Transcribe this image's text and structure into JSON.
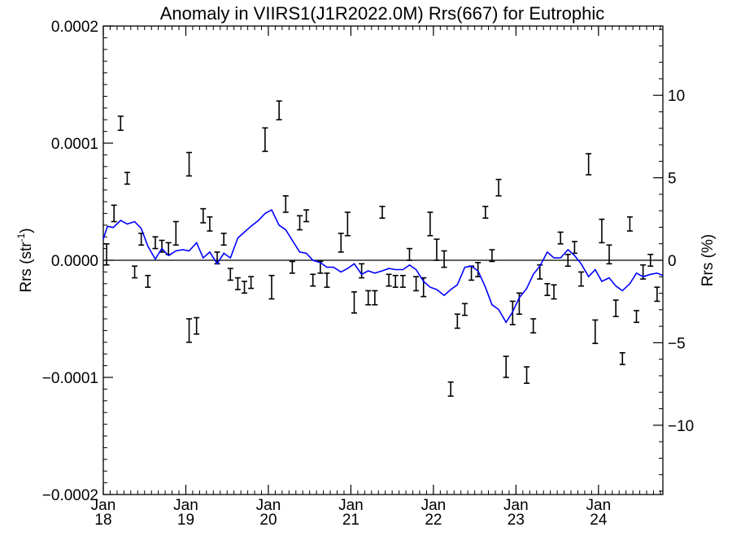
{
  "chart_data": {
    "type": "line",
    "title": "Anomaly in VIIRS1(J1R2022.0M) Rrs(667) for Eutrophic",
    "ylabel_left": "Rrs (str",
    "ylabel_left_sup": "-1",
    "ylabel_left_close": ")",
    "ylabel_right": "Rrs (%)",
    "ylim_left": [
      -0.0002,
      0.0002
    ],
    "ylim_right": [
      -14.2,
      14.2
    ],
    "xlim": [
      2018.0,
      2024.78
    ],
    "left_ticks": [
      {
        "value": 0.0002,
        "label": "0.0002"
      },
      {
        "value": 0.0001,
        "label": "0.0001"
      },
      {
        "value": 0.0,
        "label": "0.0000"
      },
      {
        "value": -0.0001,
        "label": "−0.0001"
      },
      {
        "value": -0.0002,
        "label": "−0.0002"
      }
    ],
    "right_ticks": [
      {
        "value": 10,
        "label": "10"
      },
      {
        "value": 5,
        "label": "5"
      },
      {
        "value": 0,
        "label": "0"
      },
      {
        "value": -5,
        "label": "−5"
      },
      {
        "value": -10,
        "label": "−10"
      }
    ],
    "x_ticks": [
      {
        "value": 2018,
        "month": "Jan",
        "year": "18"
      },
      {
        "value": 2019,
        "month": "Jan",
        "year": "19"
      },
      {
        "value": 2020,
        "month": "Jan",
        "year": "20"
      },
      {
        "value": 2021,
        "month": "Jan",
        "year": "21"
      },
      {
        "value": 2022,
        "month": "Jan",
        "year": "22"
      },
      {
        "value": 2023,
        "month": "Jan",
        "year": "23"
      },
      {
        "value": 2024,
        "month": "Jan",
        "year": "24"
      }
    ],
    "zero_line": true,
    "series": [
      {
        "kind": "error_bars",
        "color": "#000000",
        "points": [
          {
            "x": 2018.04,
            "y": 5e-06,
            "err": 9e-06
          },
          {
            "x": 2018.13,
            "y": 4e-05,
            "err": 7e-06
          },
          {
            "x": 2018.21,
            "y": 0.000117,
            "err": 6e-06
          },
          {
            "x": 2018.29,
            "y": 7e-05,
            "err": 5e-06
          },
          {
            "x": 2018.38,
            "y": -1e-05,
            "err": 5e-06
          },
          {
            "x": 2018.46,
            "y": 1.8e-05,
            "err": 5e-06
          },
          {
            "x": 2018.54,
            "y": -1.8e-05,
            "err": 5e-06
          },
          {
            "x": 2018.63,
            "y": 1.5e-05,
            "err": 5e-06
          },
          {
            "x": 2018.71,
            "y": 1.2e-05,
            "err": 5e-06
          },
          {
            "x": 2018.79,
            "y": 1e-05,
            "err": 5e-06
          },
          {
            "x": 2018.88,
            "y": 2.3e-05,
            "err": 1e-05
          },
          {
            "x": 2019.04,
            "y": -6e-05,
            "err": 1e-05
          },
          {
            "x": 2019.04,
            "y": 8.2e-05,
            "err": 1e-05
          },
          {
            "x": 2019.13,
            "y": -5.6e-05,
            "err": 7e-06
          },
          {
            "x": 2019.21,
            "y": 3.8e-05,
            "err": 6e-06
          },
          {
            "x": 2019.29,
            "y": 3.1e-05,
            "err": 6e-06
          },
          {
            "x": 2019.38,
            "y": 2e-06,
            "err": 5e-06
          },
          {
            "x": 2019.46,
            "y": 1.8e-05,
            "err": 5e-06
          },
          {
            "x": 2019.54,
            "y": -1.2e-05,
            "err": 5e-06
          },
          {
            "x": 2019.63,
            "y": -2e-05,
            "err": 5e-06
          },
          {
            "x": 2019.71,
            "y": -2.3e-05,
            "err": 5e-06
          },
          {
            "x": 2019.79,
            "y": -1.9e-05,
            "err": 5e-06
          },
          {
            "x": 2019.96,
            "y": 0.000103,
            "err": 1e-05
          },
          {
            "x": 2020.04,
            "y": -2.3e-05,
            "err": 1e-05
          },
          {
            "x": 2020.13,
            "y": 0.000128,
            "err": 8e-06
          },
          {
            "x": 2020.21,
            "y": 4.8e-05,
            "err": 7e-06
          },
          {
            "x": 2020.29,
            "y": -6e-06,
            "err": 5e-06
          },
          {
            "x": 2020.38,
            "y": 3.2e-05,
            "err": 6e-06
          },
          {
            "x": 2020.46,
            "y": 3.8e-05,
            "err": 5e-06
          },
          {
            "x": 2020.54,
            "y": -1.7e-05,
            "err": 5e-06
          },
          {
            "x": 2020.63,
            "y": -6e-06,
            "err": 5e-06
          },
          {
            "x": 2020.71,
            "y": -1.7e-05,
            "err": 6e-06
          },
          {
            "x": 2020.88,
            "y": 1.5e-05,
            "err": 8e-06
          },
          {
            "x": 2020.96,
            "y": 3.1e-05,
            "err": 1e-05
          },
          {
            "x": 2021.04,
            "y": -3.6e-05,
            "err": 9e-06
          },
          {
            "x": 2021.13,
            "y": -9e-06,
            "err": 6e-06
          },
          {
            "x": 2021.21,
            "y": -3.2e-05,
            "err": 6e-06
          },
          {
            "x": 2021.29,
            "y": -3.2e-05,
            "err": 6e-06
          },
          {
            "x": 2021.38,
            "y": 4.1e-05,
            "err": 5e-06
          },
          {
            "x": 2021.46,
            "y": -1.7e-05,
            "err": 5e-06
          },
          {
            "x": 2021.54,
            "y": -1.8e-05,
            "err": 5e-06
          },
          {
            "x": 2021.63,
            "y": -1.8e-05,
            "err": 5e-06
          },
          {
            "x": 2021.71,
            "y": 5e-06,
            "err": 5e-06
          },
          {
            "x": 2021.79,
            "y": -2e-05,
            "err": 6e-06
          },
          {
            "x": 2021.88,
            "y": -2.3e-05,
            "err": 8e-06
          },
          {
            "x": 2021.96,
            "y": 3.1e-05,
            "err": 1e-05
          },
          {
            "x": 2022.04,
            "y": 9e-06,
            "err": 9e-06
          },
          {
            "x": 2022.13,
            "y": 1e-06,
            "err": 7e-06
          },
          {
            "x": 2022.21,
            "y": -0.00011,
            "err": 6e-06
          },
          {
            "x": 2022.29,
            "y": -5.2e-05,
            "err": 6e-06
          },
          {
            "x": 2022.38,
            "y": -4.2e-05,
            "err": 5e-06
          },
          {
            "x": 2022.46,
            "y": -1.1e-05,
            "err": 6e-06
          },
          {
            "x": 2022.54,
            "y": -8e-06,
            "err": 6e-06
          },
          {
            "x": 2022.63,
            "y": 4.1e-05,
            "err": 5e-06
          },
          {
            "x": 2022.71,
            "y": 4e-06,
            "err": 5e-06
          },
          {
            "x": 2022.79,
            "y": 6.2e-05,
            "err": 7e-06
          },
          {
            "x": 2022.88,
            "y": -9.1e-05,
            "err": 9e-06
          },
          {
            "x": 2022.96,
            "y": -4.5e-05,
            "err": 1e-05
          },
          {
            "x": 2023.04,
            "y": -3.7e-05,
            "err": 9e-06
          },
          {
            "x": 2023.13,
            "y": -9.8e-05,
            "err": 7e-06
          },
          {
            "x": 2023.21,
            "y": -5.6e-05,
            "err": 6e-06
          },
          {
            "x": 2023.29,
            "y": -1e-05,
            "err": 6e-06
          },
          {
            "x": 2023.38,
            "y": -2.5e-05,
            "err": 5e-06
          },
          {
            "x": 2023.46,
            "y": -2.7e-05,
            "err": 6e-06
          },
          {
            "x": 2023.54,
            "y": 1.9e-05,
            "err": 5e-06
          },
          {
            "x": 2023.63,
            "y": 0.0,
            "err": 5e-06
          },
          {
            "x": 2023.71,
            "y": 1.1e-05,
            "err": 5e-06
          },
          {
            "x": 2023.79,
            "y": -1.6e-05,
            "err": 6e-06
          },
          {
            "x": 2023.88,
            "y": 8.2e-05,
            "err": 9e-06
          },
          {
            "x": 2023.96,
            "y": -6.1e-05,
            "err": 1e-05
          },
          {
            "x": 2024.04,
            "y": 2.5e-05,
            "err": 1e-05
          },
          {
            "x": 2024.13,
            "y": 5e-06,
            "err": 8e-06
          },
          {
            "x": 2024.21,
            "y": -4.1e-05,
            "err": 7e-06
          },
          {
            "x": 2024.29,
            "y": -8.4e-05,
            "err": 5e-06
          },
          {
            "x": 2024.38,
            "y": 3.1e-05,
            "err": 6e-06
          },
          {
            "x": 2024.46,
            "y": -4.8e-05,
            "err": 5e-06
          },
          {
            "x": 2024.54,
            "y": -1e-05,
            "err": 6e-06
          },
          {
            "x": 2024.63,
            "y": 0.0,
            "err": 5e-06
          },
          {
            "x": 2024.71,
            "y": -2.9e-05,
            "err": 6e-06
          }
        ]
      },
      {
        "kind": "line",
        "color": "#0000ff",
        "x": [
          2018.0,
          2018.05,
          2018.12,
          2018.21,
          2018.29,
          2018.38,
          2018.46,
          2018.54,
          2018.63,
          2018.71,
          2018.79,
          2018.88,
          2018.96,
          2019.04,
          2019.13,
          2019.21,
          2019.29,
          2019.38,
          2019.46,
          2019.54,
          2019.63,
          2019.71,
          2019.79,
          2019.88,
          2019.96,
          2020.04,
          2020.13,
          2020.21,
          2020.29,
          2020.38,
          2020.46,
          2020.54,
          2020.63,
          2020.71,
          2020.79,
          2020.88,
          2020.96,
          2021.04,
          2021.13,
          2021.21,
          2021.29,
          2021.38,
          2021.46,
          2021.54,
          2021.63,
          2021.71,
          2021.79,
          2021.88,
          2021.96,
          2022.04,
          2022.13,
          2022.21,
          2022.29,
          2022.38,
          2022.46,
          2022.54,
          2022.63,
          2022.71,
          2022.79,
          2022.88,
          2022.96,
          2023.04,
          2023.13,
          2023.21,
          2023.29,
          2023.38,
          2023.46,
          2023.54,
          2023.63,
          2023.71,
          2023.79,
          2023.88,
          2023.96,
          2024.04,
          2024.13,
          2024.21,
          2024.29,
          2024.38,
          2024.46,
          2024.54,
          2024.63,
          2024.71,
          2024.78
        ],
        "y": [
          1.8e-05,
          2.9e-05,
          2.8e-05,
          3.4e-05,
          3.1e-05,
          3.3e-05,
          2.7e-05,
          1.2e-05,
          1e-06,
          1e-05,
          4e-06,
          8e-06,
          9e-06,
          8e-06,
          1.5e-05,
          2e-06,
          7e-06,
          -3e-06,
          6e-06,
          2e-06,
          1.9e-05,
          2.4e-05,
          2.9e-05,
          3.4e-05,
          4e-05,
          4.3e-05,
          3e-05,
          2.6e-05,
          1.7e-05,
          7e-06,
          6e-06,
          0.0,
          -2e-06,
          -6e-06,
          -6e-06,
          -1e-05,
          -7e-06,
          -3e-06,
          -1.2e-05,
          -9e-06,
          -1.1e-05,
          -9e-06,
          -7e-06,
          -8e-06,
          -8e-06,
          -4e-06,
          -8e-06,
          -1.8e-05,
          -2.3e-05,
          -2.5e-05,
          -3e-05,
          -2.5e-05,
          -2.1e-05,
          -6e-06,
          -5e-06,
          -9e-06,
          -2.3e-05,
          -3.8e-05,
          -4.2e-05,
          -5.3e-05,
          -4.4e-05,
          -3.2e-05,
          -2.4e-05,
          -1.2e-05,
          -5e-06,
          7e-06,
          2e-06,
          2e-06,
          9e-06,
          4e-06,
          -3e-06,
          -1.4e-05,
          -8e-06,
          -1.8e-05,
          -1.5e-05,
          -2.2e-05,
          -2.6e-05,
          -2e-05,
          -1.1e-05,
          -1.4e-05,
          -1.2e-05,
          -1.1e-05,
          -1.3e-05
        ]
      }
    ]
  }
}
